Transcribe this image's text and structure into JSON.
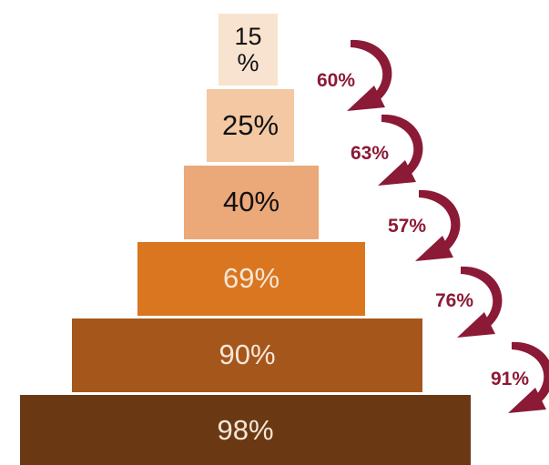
{
  "tiers": [
    {
      "label": "15\n%",
      "color": "#f8e3d0",
      "text_color": "#111111"
    },
    {
      "label": "25%",
      "color": "#f3c8a2",
      "text_color": "#111111"
    },
    {
      "label": "40%",
      "color": "#eba878",
      "text_color": "#111111"
    },
    {
      "label": "69%",
      "color": "#d9761f",
      "text_color": "#f6e6d8"
    },
    {
      "label": "90%",
      "color": "#a5561b",
      "text_color": "#f6e6d8"
    },
    {
      "label": "98%",
      "color": "#6a3913",
      "text_color": "#f6e6d8"
    }
  ],
  "conversion_rates": [
    {
      "label": "60%"
    },
    {
      "label": "63%"
    },
    {
      "label": "57%"
    },
    {
      "label": "76%"
    },
    {
      "label": "91%"
    }
  ],
  "arrow_color": "#8b1a37"
}
